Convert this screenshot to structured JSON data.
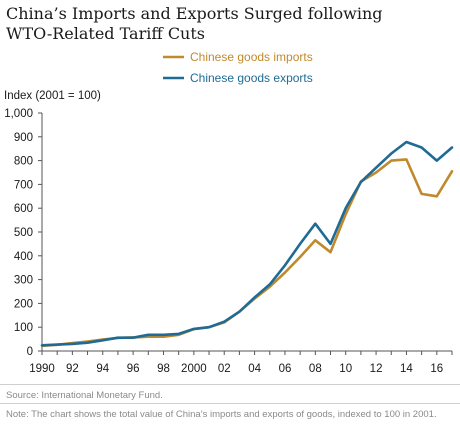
{
  "title_lines": [
    "China’s Imports and Exports Surged following",
    "WTO-Related Tariff Cuts"
  ],
  "source": "Source: International Monetary Fund.",
  "note": "Note: The chart shows the total value of China’s imports and exports of goods, indexed to 100 in 2001.",
  "chart_data": {
    "type": "line",
    "title": "China’s Imports and Exports Surged following WTO-Related Tariff Cuts",
    "ylabel": "Index  (2001 = 100)",
    "xlabel": "",
    "ylim": [
      0,
      1000
    ],
    "xlim": [
      1990,
      2017
    ],
    "yticks": [
      0,
      100,
      200,
      300,
      400,
      500,
      600,
      700,
      800,
      900,
      1000
    ],
    "ytick_labels": [
      "0",
      "100",
      "200",
      "300",
      "400",
      "500",
      "600",
      "700",
      "800",
      "900",
      "1,000"
    ],
    "xticks": [
      1990,
      1992,
      1994,
      1996,
      1998,
      2000,
      2002,
      2004,
      2006,
      2008,
      2010,
      2012,
      2014,
      2016
    ],
    "xtick_labels": [
      "1990",
      "92",
      "94",
      "96",
      "98",
      "2000",
      "02",
      "04",
      "06",
      "08",
      "10",
      "12",
      "14",
      "16"
    ],
    "grid": false,
    "legend_position": "top-right",
    "x": [
      1990,
      1991,
      1992,
      1993,
      1994,
      1995,
      1996,
      1997,
      1998,
      1999,
      2000,
      2001,
      2002,
      2003,
      2004,
      2005,
      2006,
      2007,
      2008,
      2009,
      2010,
      2011,
      2012,
      2013,
      2014,
      2015,
      2016,
      2017
    ],
    "series": [
      {
        "name": "Chinese goods imports",
        "color": "#c08a2c",
        "values": [
          22,
          26,
          33,
          40,
          48,
          55,
          57,
          60,
          60,
          68,
          92,
          100,
          120,
          165,
          220,
          270,
          330,
          395,
          465,
          415,
          575,
          712,
          750,
          800,
          805,
          660,
          650,
          755
        ]
      },
      {
        "name": "Chinese goods exports",
        "color": "#1f6b95",
        "values": [
          24,
          27,
          30,
          35,
          45,
          56,
          56,
          68,
          68,
          72,
          93,
          100,
          123,
          165,
          225,
          280,
          360,
          450,
          535,
          450,
          600,
          710,
          770,
          830,
          878,
          855,
          800,
          855
        ]
      }
    ]
  }
}
